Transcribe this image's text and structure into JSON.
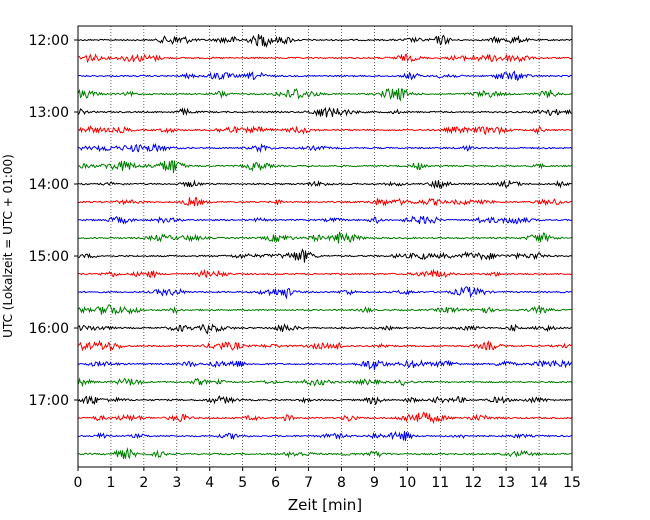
{
  "chart_data": {
    "type": "line",
    "title": "",
    "xlabel": "Zeit  [min]",
    "ylabel": "UTC (Lokalzeit = UTC + 01:00)",
    "xlim": [
      0,
      15
    ],
    "xticks": [
      "0",
      "1",
      "2",
      "3",
      "4",
      "5",
      "6",
      "7",
      "8",
      "9",
      "10",
      "11",
      "12",
      "13",
      "14",
      "15"
    ],
    "yticks": [
      "12:00",
      "13:00",
      "14:00",
      "15:00",
      "16:00",
      "17:00"
    ],
    "grid": "vertical dotted",
    "colors": [
      "#000000",
      "#ff0000",
      "#0000ff",
      "#008000"
    ],
    "trace_start": "12:00",
    "trace_interval_min": 15,
    "trace_count": 24
  }
}
